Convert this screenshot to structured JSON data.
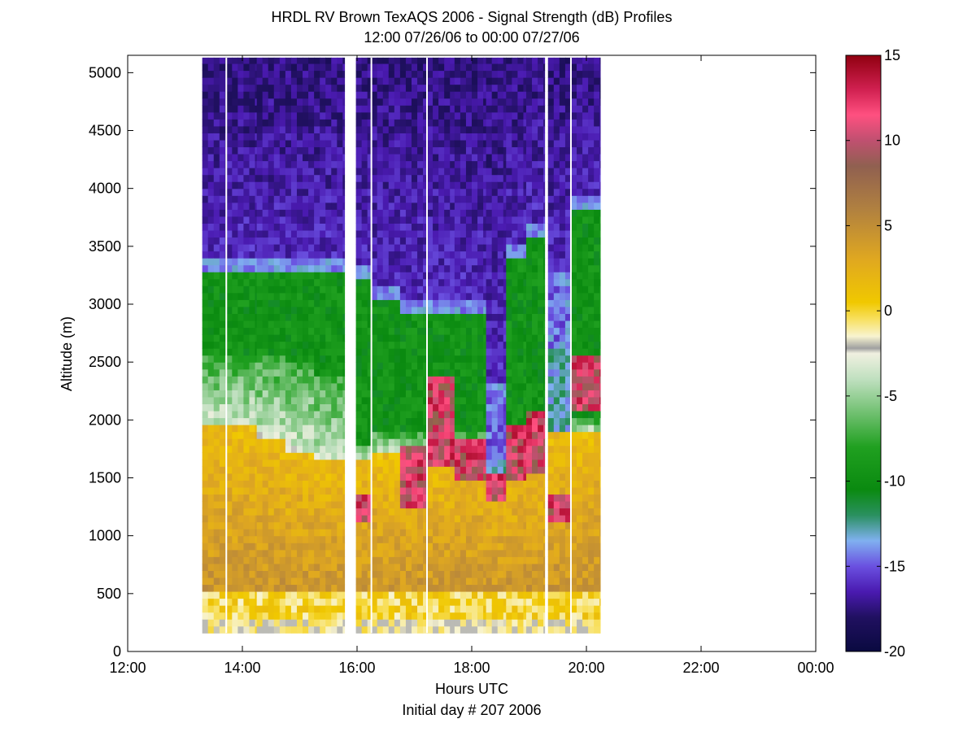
{
  "chart_data": [
    {
      "type": "heatmap",
      "title": "HRDL RV Brown TexAQS 2006 - Signal Strength (dB) Profiles",
      "subtitle": "12:00 07/26/06 to 00:00 07/27/06",
      "xlabel": "Hours UTC",
      "xlabel2": "Initial day # 207  2006",
      "ylabel": "Altitude (m)",
      "xlim": [
        12,
        24
      ],
      "ylim": [
        0,
        5150
      ],
      "x_tick_labels": [
        "12:00",
        "14:00",
        "16:00",
        "18:00",
        "20:00",
        "22:00",
        "00:00"
      ],
      "x_tick_values": [
        12,
        14,
        16,
        18,
        20,
        22,
        24
      ],
      "y_tick_values": [
        0,
        500,
        1000,
        1500,
        2000,
        2500,
        3000,
        3500,
        4000,
        4500,
        5000
      ],
      "y_tick_labels": [
        "0",
        "500",
        "1000",
        "1500",
        "2000",
        "2500",
        "3000",
        "3500",
        "4000",
        "4500",
        "5000"
      ],
      "data_altitude_range": [
        160,
        5130
      ],
      "data_segments": [
        {
          "start": 13.3,
          "end": 15.78
        },
        {
          "start": 15.98,
          "end": 19.27
        },
        {
          "start": 19.33,
          "end": 20.24
        }
      ],
      "gaps_white_lines": [
        13.72,
        16.25,
        17.22,
        19.73
      ],
      "profiles": [
        {
          "t_start": 13.3,
          "t_end": 13.72,
          "bl_top": 1950,
          "green_bottom": 2580,
          "green_top": 3300,
          "mid": "green"
        },
        {
          "t_start": 13.72,
          "t_end": 14.25,
          "bl_top": 1950,
          "green_bottom": 2560,
          "green_top": 3290,
          "mid": "green"
        },
        {
          "t_start": 14.25,
          "t_end": 14.75,
          "bl_top": 1850,
          "green_bottom": 2560,
          "green_top": 3280,
          "mid": "green"
        },
        {
          "t_start": 14.75,
          "t_end": 15.25,
          "bl_top": 1750,
          "green_bottom": 2520,
          "green_top": 3260,
          "mid": "green"
        },
        {
          "t_start": 15.25,
          "t_end": 15.78,
          "bl_top": 1650,
          "green_bottom": 2400,
          "green_top": 3280,
          "mid": "green"
        },
        {
          "t_start": 15.98,
          "t_end": 16.25,
          "bl_top": 1650,
          "green_bottom": 1800,
          "green_top": 3200,
          "mid": "green",
          "red_band": [
            1150,
            1350
          ]
        },
        {
          "t_start": 16.25,
          "t_end": 16.75,
          "bl_top": 1700,
          "green_bottom": 1900,
          "green_top": 3050,
          "mid": "green"
        },
        {
          "t_start": 16.75,
          "t_end": 17.22,
          "bl_top": 1650,
          "green_bottom": 1900,
          "green_top": 2950,
          "mid": "green",
          "red_band": [
            1250,
            1750
          ]
        },
        {
          "t_start": 17.22,
          "t_end": 17.7,
          "bl_top": 1650,
          "green_bottom": 2000,
          "green_top": 2950,
          "mid": "green",
          "red_band": [
            1600,
            2350
          ]
        },
        {
          "t_start": 17.7,
          "t_end": 18.25,
          "bl_top": 1700,
          "green_bottom": 1900,
          "green_top": 2900,
          "mid": "green",
          "red_band": [
            1500,
            1850
          ]
        },
        {
          "t_start": 18.25,
          "t_end": 18.6,
          "bl_top": 1550,
          "green_bottom": 1650,
          "green_top": 2200,
          "mid": "blue",
          "red_band": [
            1300,
            1550
          ]
        },
        {
          "t_start": 18.6,
          "t_end": 18.95,
          "bl_top": 1700,
          "green_bottom": 1950,
          "green_top": 3400,
          "mid": "green",
          "red_band": [
            1500,
            1950
          ]
        },
        {
          "t_start": 18.95,
          "t_end": 19.27,
          "bl_top": 1750,
          "green_bottom": 2000,
          "green_top": 3600,
          "mid": "green",
          "red_band": [
            1550,
            2050
          ]
        },
        {
          "t_start": 19.33,
          "t_end": 19.73,
          "bl_top": 1900,
          "green_bottom": 2600,
          "green_top": 3150,
          "mid": "blue",
          "red_band": [
            1150,
            1350
          ]
        },
        {
          "t_start": 19.73,
          "t_end": 20.24,
          "bl_top": 1900,
          "green_bottom": 2000,
          "green_top": 3800,
          "mid": "green",
          "red_band": [
            2100,
            2550
          ]
        }
      ],
      "colorbar": {
        "min": -20,
        "max": 15,
        "ticks": [
          -20,
          -15,
          -10,
          -5,
          0,
          5,
          10,
          15
        ],
        "tick_labels": [
          "-20",
          "-15",
          "-10",
          "-5",
          "0",
          "5",
          "10",
          "15"
        ],
        "colors": [
          [
            -20,
            "#0a0a40"
          ],
          [
            -18,
            "#201060"
          ],
          [
            -16.5,
            "#4a1ab0"
          ],
          [
            -15,
            "#6a50e0"
          ],
          [
            -13.5,
            "#80b0f0"
          ],
          [
            -12,
            "#2a9060"
          ],
          [
            -10.5,
            "#0a8a10"
          ],
          [
            -8,
            "#20a020"
          ],
          [
            -6,
            "#70c070"
          ],
          [
            -4,
            "#c0e0c0"
          ],
          [
            -2.5,
            "#f0f0e0"
          ],
          [
            -2.2,
            "#a0a0a0"
          ],
          [
            -1.5,
            "#f8f4d0"
          ],
          [
            -0.5,
            "#f8e060"
          ],
          [
            0.5,
            "#f0c800"
          ],
          [
            3,
            "#e0a820"
          ],
          [
            6,
            "#b08040"
          ],
          [
            8.5,
            "#906050"
          ],
          [
            10,
            "#c05070"
          ],
          [
            11.5,
            "#ff5080"
          ],
          [
            13,
            "#d02050"
          ],
          [
            15,
            "#900010"
          ]
        ]
      }
    }
  ]
}
